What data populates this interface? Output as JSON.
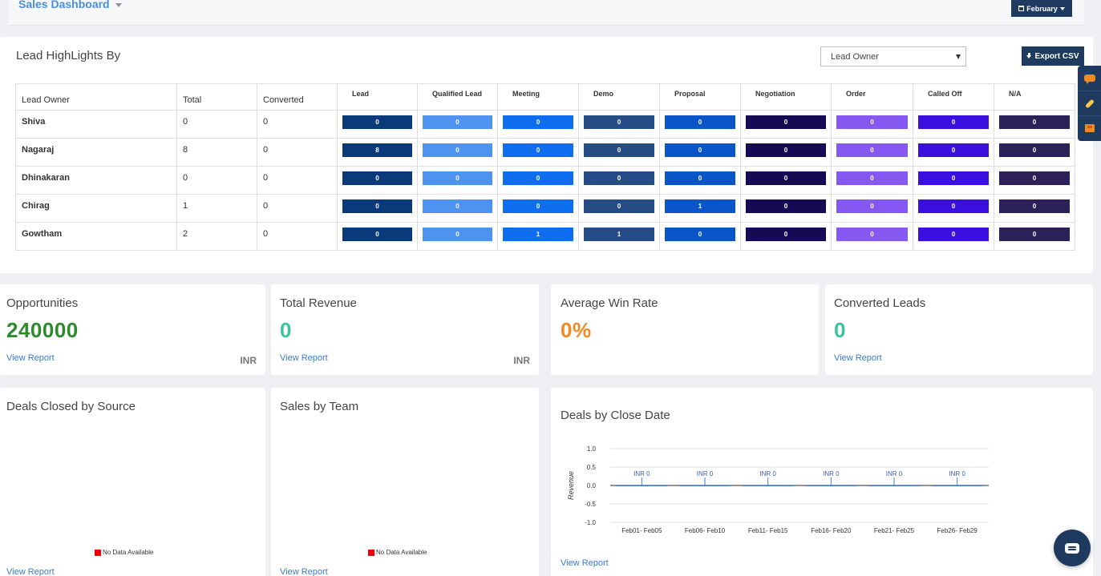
{
  "header": {
    "title": "Sales Dashboard",
    "month_label": "February"
  },
  "lead_highlights": {
    "title": "Lead HighLights By",
    "group_by": "Lead Owner",
    "export_label": "Export CSV",
    "columns": [
      "Lead Owner",
      "Total",
      "Converted"
    ],
    "stages": [
      {
        "label": "Lead",
        "color": "#0b3a7a"
      },
      {
        "label": "Qualified Lead",
        "color": "#4f93f0"
      },
      {
        "label": "Meeting",
        "color": "#0f6ef0"
      },
      {
        "label": "Demo",
        "color": "#254c85"
      },
      {
        "label": "Proposal",
        "color": "#0a55c8"
      },
      {
        "label": "Negotiation",
        "color": "#170a54"
      },
      {
        "label": "Order",
        "color": "#8658f2"
      },
      {
        "label": "Called Off",
        "color": "#3a0fe0"
      },
      {
        "label": "N/A",
        "color": "#2b2058"
      }
    ],
    "rows": [
      {
        "owner": "Shiva",
        "total": "0",
        "converted": "0",
        "values": [
          "0",
          "0",
          "0",
          "0",
          "0",
          "0",
          "0",
          "0",
          "0"
        ]
      },
      {
        "owner": "Nagaraj",
        "total": "8",
        "converted": "0",
        "values": [
          "8",
          "0",
          "0",
          "0",
          "0",
          "0",
          "0",
          "0",
          "0"
        ]
      },
      {
        "owner": "Dhinakaran",
        "total": "0",
        "converted": "0",
        "values": [
          "0",
          "0",
          "0",
          "0",
          "0",
          "0",
          "0",
          "0",
          "0"
        ]
      },
      {
        "owner": "Chirag",
        "total": "1",
        "converted": "0",
        "values": [
          "0",
          "0",
          "0",
          "0",
          "1",
          "0",
          "0",
          "0",
          "0"
        ]
      },
      {
        "owner": "Gowtham",
        "total": "2",
        "converted": "0",
        "values": [
          "0",
          "0",
          "1",
          "1",
          "0",
          "0",
          "0",
          "0",
          "0"
        ]
      }
    ]
  },
  "cards": {
    "opportunities": {
      "title": "Opportunities",
      "value": "240000",
      "link": "View Report",
      "unit": "INR",
      "color": "#2d8a2d"
    },
    "total_revenue": {
      "title": "Total Revenue",
      "value": "0",
      "link": "View Report",
      "unit": "INR",
      "color": "#3cc3a0"
    },
    "avg_win_rate": {
      "title": "Average Win Rate",
      "value": "0%",
      "color": "#f08a24"
    },
    "converted_leads": {
      "title": "Converted Leads",
      "value": "0",
      "link": "View Report",
      "color": "#3cc3a0"
    }
  },
  "deals_by_source": {
    "title": "Deals Closed by Source",
    "no_data": "No Data Available",
    "link": "View Report"
  },
  "sales_by_team": {
    "title": "Sales by Team",
    "no_data": "No Data Available",
    "link": "View Report"
  },
  "deals_by_close_date": {
    "title": "Deals by Close Date",
    "link": "View Report"
  },
  "chart_data": {
    "type": "bar",
    "title": "Deals by Close Date",
    "ylabel": "Revenue",
    "xlabel": "",
    "categories": [
      "Feb01- Feb05",
      "Feb06- Feb10",
      "Feb11- Feb15",
      "Feb16- Feb20",
      "Feb21- Feb25",
      "Feb26- Feb29"
    ],
    "values": [
      0,
      0,
      0,
      0,
      0,
      0
    ],
    "data_labels": [
      "INR 0",
      "INR 0",
      "INR 0",
      "INR 0",
      "INR 0",
      "INR 0"
    ],
    "yticks": [
      "1.0",
      "0.5",
      "0.0",
      "-0.5",
      "-1.0"
    ],
    "ylim": [
      -1.0,
      1.0
    ],
    "grid": true
  }
}
